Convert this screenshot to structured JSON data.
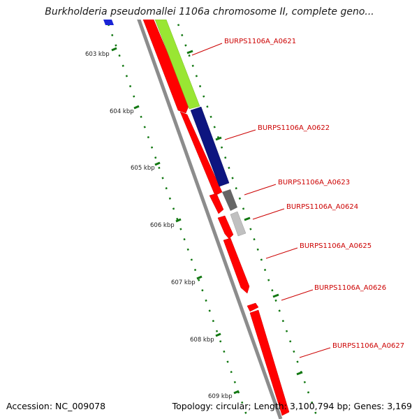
{
  "title": "Burkholderia pseudomallei 1106a chromosome II, complete geno...",
  "footer": {
    "accession": "Accession: NC_009078",
    "summary": "Topology: circular; Length: 3,100,794 bp; Genes: 3,169"
  },
  "ticks": [
    {
      "label": "603 kbp"
    },
    {
      "label": "604 kbp"
    },
    {
      "label": "605 kbp"
    },
    {
      "label": "606 kbp"
    },
    {
      "label": "607 kbp"
    },
    {
      "label": "608 kbp"
    },
    {
      "label": "609 kbp"
    }
  ],
  "genes": [
    {
      "label": "BURPS1106A_A0621"
    },
    {
      "label": "BURPS1106A_A0622"
    },
    {
      "label": "BURPS1106A_A0623"
    },
    {
      "label": "BURPS1106A_A0624"
    },
    {
      "label": "BURPS1106A_A0625"
    },
    {
      "label": "BURPS1106A_A0626"
    },
    {
      "label": "BURPS1106A_A0627"
    }
  ],
  "colors": {
    "backbone": "#8c8c8c",
    "forward_cds": "#ff0000",
    "yellowgreen": "#99e633",
    "navy": "#0d1580",
    "darkgray": "#666666",
    "lightgray": "#c0c0c0",
    "tick": "#117711",
    "label": "#cc0000"
  },
  "icons": {
    "map": "genome-map-icon"
  }
}
